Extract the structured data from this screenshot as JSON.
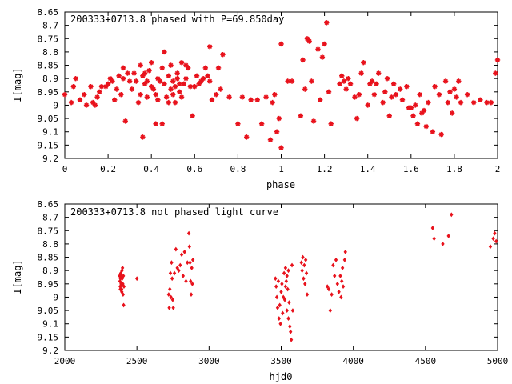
{
  "chart_data": [
    {
      "type": "scatter",
      "title": "200333+0713.8 phased with P=69.850day",
      "xlabel": "phase",
      "ylabel": "I[mag]",
      "xlim": [
        0,
        2
      ],
      "ylim": [
        9.2,
        8.65
      ],
      "y_inverted": true,
      "xticks": [
        "0",
        "0.2",
        "0.4",
        "0.6",
        "0.8",
        "1",
        "1.2",
        "1.4",
        "1.6",
        "1.8",
        "2"
      ],
      "yticks": [
        "8.65",
        "8.7",
        "8.75",
        "8.8",
        "8.85",
        "8.9",
        "8.95",
        "9",
        "9.05",
        "9.1",
        "9.15",
        "9.2"
      ],
      "grid": false,
      "marker_color": "#e8121c",
      "marker": "star",
      "points": [
        [
          0.0,
          8.96
        ],
        [
          0.03,
          8.99
        ],
        [
          0.04,
          8.93
        ],
        [
          0.05,
          8.9
        ],
        [
          0.07,
          8.98
        ],
        [
          0.09,
          8.96
        ],
        [
          0.1,
          9.0
        ],
        [
          0.12,
          8.93
        ],
        [
          0.13,
          8.99
        ],
        [
          0.14,
          9.0
        ],
        [
          0.15,
          8.97
        ],
        [
          0.16,
          8.95
        ],
        [
          0.17,
          8.93
        ],
        [
          0.19,
          8.93
        ],
        [
          0.2,
          8.92
        ],
        [
          0.21,
          8.9
        ],
        [
          0.22,
          8.91
        ],
        [
          0.23,
          8.98
        ],
        [
          0.24,
          8.94
        ],
        [
          0.25,
          8.89
        ],
        [
          0.26,
          8.96
        ],
        [
          0.27,
          8.9
        ],
        [
          0.27,
          8.86
        ],
        [
          0.28,
          9.06
        ],
        [
          0.29,
          8.88
        ],
        [
          0.3,
          8.91
        ],
        [
          0.31,
          8.94
        ],
        [
          0.32,
          8.88
        ],
        [
          0.33,
          8.91
        ],
        [
          0.34,
          8.99
        ],
        [
          0.35,
          8.85
        ],
        [
          0.35,
          8.96
        ],
        [
          0.36,
          8.89
        ],
        [
          0.36,
          9.12
        ],
        [
          0.37,
          8.88
        ],
        [
          0.37,
          8.92
        ],
        [
          0.38,
          8.91
        ],
        [
          0.38,
          8.97
        ],
        [
          0.39,
          8.87
        ],
        [
          0.4,
          8.84
        ],
        [
          0.4,
          8.93
        ],
        [
          0.41,
          8.94
        ],
        [
          0.42,
          8.96
        ],
        [
          0.42,
          9.07
        ],
        [
          0.43,
          8.9
        ],
        [
          0.43,
          8.98
        ],
        [
          0.44,
          8.91
        ],
        [
          0.45,
          8.86
        ],
        [
          0.45,
          9.07
        ],
        [
          0.46,
          8.8
        ],
        [
          0.46,
          8.92
        ],
        [
          0.47,
          8.97
        ],
        [
          0.48,
          8.89
        ],
        [
          0.48,
          8.99
        ],
        [
          0.49,
          8.85
        ],
        [
          0.49,
          8.94
        ],
        [
          0.5,
          8.91
        ],
        [
          0.5,
          8.96
        ],
        [
          0.51,
          8.99
        ],
        [
          0.51,
          8.93
        ],
        [
          0.52,
          8.88
        ],
        [
          0.52,
          8.9
        ],
        [
          0.53,
          8.92
        ],
        [
          0.53,
          8.95
        ],
        [
          0.54,
          8.84
        ],
        [
          0.54,
          8.97
        ],
        [
          0.55,
          8.92
        ],
        [
          0.56,
          8.85
        ],
        [
          0.56,
          8.9
        ],
        [
          0.57,
          8.86
        ],
        [
          0.58,
          8.93
        ],
        [
          0.59,
          9.04
        ],
        [
          0.6,
          8.93
        ],
        [
          0.61,
          8.89
        ],
        [
          0.62,
          8.92
        ],
        [
          0.63,
          8.91
        ],
        [
          0.64,
          8.9
        ],
        [
          0.65,
          8.86
        ],
        [
          0.66,
          8.89
        ],
        [
          0.67,
          8.78
        ],
        [
          0.67,
          8.91
        ],
        [
          0.68,
          8.98
        ],
        [
          0.7,
          8.96
        ],
        [
          0.71,
          8.86
        ],
        [
          0.72,
          8.94
        ],
        [
          0.73,
          8.81
        ],
        [
          0.76,
          8.97
        ],
        [
          0.8,
          9.07
        ],
        [
          0.82,
          8.97
        ],
        [
          0.84,
          9.12
        ],
        [
          0.86,
          8.98
        ],
        [
          0.89,
          8.98
        ],
        [
          0.91,
          9.07
        ],
        [
          0.93,
          8.97
        ],
        [
          0.95,
          9.13
        ],
        [
          0.96,
          8.99
        ],
        [
          0.97,
          8.96
        ],
        [
          0.98,
          9.1
        ],
        [
          0.99,
          9.05
        ],
        [
          1.0,
          8.77
        ],
        [
          1.0,
          9.16
        ],
        [
          1.03,
          8.91
        ],
        [
          1.05,
          8.91
        ],
        [
          1.09,
          9.04
        ],
        [
          1.1,
          8.83
        ],
        [
          1.11,
          8.94
        ],
        [
          1.12,
          8.75
        ],
        [
          1.13,
          8.76
        ],
        [
          1.14,
          8.91
        ],
        [
          1.15,
          9.06
        ],
        [
          1.17,
          8.79
        ],
        [
          1.18,
          8.98
        ],
        [
          1.19,
          8.82
        ],
        [
          1.2,
          8.77
        ],
        [
          1.21,
          8.69
        ],
        [
          1.22,
          8.95
        ],
        [
          1.23,
          9.07
        ],
        [
          1.27,
          8.92
        ],
        [
          1.28,
          8.89
        ],
        [
          1.29,
          8.91
        ],
        [
          1.3,
          8.94
        ],
        [
          1.31,
          8.9
        ],
        [
          1.32,
          8.92
        ],
        [
          1.34,
          8.97
        ],
        [
          1.35,
          9.05
        ],
        [
          1.36,
          8.96
        ],
        [
          1.37,
          8.88
        ],
        [
          1.38,
          8.84
        ],
        [
          1.4,
          9.0
        ],
        [
          1.41,
          8.92
        ],
        [
          1.42,
          8.91
        ],
        [
          1.43,
          8.96
        ],
        [
          1.44,
          8.92
        ],
        [
          1.45,
          8.88
        ],
        [
          1.47,
          8.99
        ],
        [
          1.48,
          8.95
        ],
        [
          1.49,
          8.9
        ],
        [
          1.5,
          9.04
        ],
        [
          1.51,
          8.97
        ],
        [
          1.52,
          8.92
        ],
        [
          1.53,
          8.96
        ],
        [
          1.55,
          8.94
        ],
        [
          1.56,
          8.98
        ],
        [
          1.58,
          8.93
        ],
        [
          1.59,
          9.01
        ],
        [
          1.6,
          9.01
        ],
        [
          1.61,
          9.04
        ],
        [
          1.62,
          9.0
        ],
        [
          1.63,
          9.07
        ],
        [
          1.64,
          8.96
        ],
        [
          1.65,
          9.03
        ],
        [
          1.66,
          9.02
        ],
        [
          1.67,
          9.08
        ],
        [
          1.68,
          8.99
        ],
        [
          1.7,
          9.1
        ],
        [
          1.71,
          8.93
        ],
        [
          1.73,
          8.96
        ],
        [
          1.74,
          9.11
        ],
        [
          1.76,
          8.91
        ],
        [
          1.77,
          8.99
        ],
        [
          1.78,
          8.95
        ],
        [
          1.79,
          9.03
        ],
        [
          1.8,
          8.94
        ],
        [
          1.81,
          8.97
        ],
        [
          1.82,
          8.91
        ],
        [
          1.83,
          8.99
        ],
        [
          1.86,
          8.96
        ],
        [
          1.89,
          8.99
        ],
        [
          1.92,
          8.98
        ],
        [
          1.95,
          8.99
        ],
        [
          1.97,
          8.99
        ],
        [
          1.99,
          8.88
        ],
        [
          2.0,
          8.83
        ]
      ]
    },
    {
      "type": "scatter",
      "title": "200333+0713.8 not phased light curve",
      "xlabel": "hjd0",
      "ylabel": "I[mag]",
      "xlim": [
        2000,
        5000
      ],
      "ylim": [
        9.2,
        8.65
      ],
      "y_inverted": true,
      "xticks": [
        "2000",
        "2500",
        "3000",
        "3500",
        "4000",
        "4500",
        "5000"
      ],
      "yticks": [
        "8.65",
        "8.7",
        "8.75",
        "8.8",
        "8.85",
        "8.9",
        "8.95",
        "9",
        "9.05",
        "9.1",
        "9.15",
        "9.2"
      ],
      "grid": false,
      "marker_color": "#e8121c",
      "marker": "diamond",
      "points": [
        [
          2380,
          8.92
        ],
        [
          2382,
          8.94
        ],
        [
          2384,
          8.96
        ],
        [
          2386,
          8.93
        ],
        [
          2388,
          8.91
        ],
        [
          2390,
          8.95
        ],
        [
          2392,
          8.92
        ],
        [
          2394,
          8.97
        ],
        [
          2396,
          8.9
        ],
        [
          2398,
          8.93
        ],
        [
          2400,
          8.89
        ],
        [
          2402,
          8.95
        ],
        [
          2404,
          8.99
        ],
        [
          2406,
          8.92
        ],
        [
          2408,
          9.03
        ],
        [
          2410,
          8.96
        ],
        [
          2395,
          8.98
        ],
        [
          2385,
          8.97
        ],
        [
          2500,
          8.93
        ],
        [
          2720,
          8.99
        ],
        [
          2724,
          9.04
        ],
        [
          2728,
          8.97
        ],
        [
          2732,
          8.91
        ],
        [
          2736,
          9.0
        ],
        [
          2740,
          8.87
        ],
        [
          2744,
          8.93
        ],
        [
          2748,
          9.01
        ],
        [
          2752,
          9.04
        ],
        [
          2760,
          8.91
        ],
        [
          2770,
          8.82
        ],
        [
          2780,
          8.89
        ],
        [
          2790,
          8.9
        ],
        [
          2800,
          8.88
        ],
        [
          2810,
          8.84
        ],
        [
          2820,
          8.92
        ],
        [
          2830,
          8.83
        ],
        [
          2840,
          8.94
        ],
        [
          2850,
          8.87
        ],
        [
          2860,
          8.76
        ],
        [
          2864,
          8.81
        ],
        [
          2868,
          8.87
        ],
        [
          2872,
          8.94
        ],
        [
          2876,
          8.99
        ],
        [
          2880,
          8.89
        ],
        [
          2884,
          8.95
        ],
        [
          2888,
          8.86
        ],
        [
          3460,
          8.93
        ],
        [
          3465,
          8.96
        ],
        [
          3470,
          9.0
        ],
        [
          3475,
          9.04
        ],
        [
          3480,
          8.94
        ],
        [
          3485,
          9.08
        ],
        [
          3490,
          9.03
        ],
        [
          3495,
          9.1
        ],
        [
          3500,
          8.98
        ],
        [
          3505,
          8.95
        ],
        [
          3510,
          9.06
        ],
        [
          3515,
          9.0
        ],
        [
          3520,
          8.91
        ],
        [
          3525,
          9.01
        ],
        [
          3530,
          8.89
        ],
        [
          3535,
          8.94
        ],
        [
          3540,
          9.05
        ],
        [
          3545,
          8.97
        ],
        [
          3550,
          9.08
        ],
        [
          3555,
          9.02
        ],
        [
          3560,
          9.11
        ],
        [
          3565,
          9.13
        ],
        [
          3570,
          9.16
        ],
        [
          3575,
          8.88
        ],
        [
          3580,
          9.05
        ],
        [
          3530,
          8.96
        ],
        [
          3540,
          8.92
        ],
        [
          3550,
          8.9
        ],
        [
          3640,
          8.87
        ],
        [
          3645,
          8.9
        ],
        [
          3650,
          8.85
        ],
        [
          3655,
          8.93
        ],
        [
          3660,
          8.88
        ],
        [
          3665,
          8.95
        ],
        [
          3670,
          8.86
        ],
        [
          3675,
          8.91
        ],
        [
          3680,
          8.99
        ],
        [
          3820,
          8.96
        ],
        [
          3830,
          8.97
        ],
        [
          3840,
          9.05
        ],
        [
          3850,
          8.99
        ],
        [
          3860,
          8.88
        ],
        [
          3870,
          8.92
        ],
        [
          3880,
          8.86
        ],
        [
          3890,
          8.95
        ],
        [
          3900,
          8.98
        ],
        [
          3910,
          8.92
        ],
        [
          3915,
          9.0
        ],
        [
          3920,
          8.94
        ],
        [
          3925,
          8.89
        ],
        [
          3930,
          8.96
        ],
        [
          3940,
          8.86
        ],
        [
          3945,
          8.83
        ],
        [
          4550,
          8.74
        ],
        [
          4560,
          8.78
        ],
        [
          4620,
          8.8
        ],
        [
          4660,
          8.77
        ],
        [
          4680,
          8.69
        ],
        [
          4950,
          8.81
        ],
        [
          4970,
          8.78
        ],
        [
          4980,
          8.76
        ],
        [
          4990,
          8.79
        ]
      ]
    }
  ]
}
